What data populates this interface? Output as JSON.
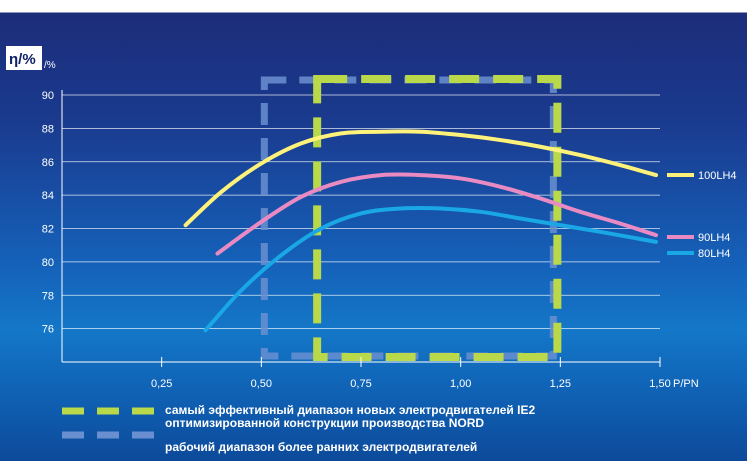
{
  "chart_data": {
    "type": "line",
    "ylabel": "η/%",
    "ylabel_unit": "/%",
    "xlabel": "P/PN",
    "xlim": [
      0,
      1.5
    ],
    "ylim": [
      74,
      90
    ],
    "x_ticks": [
      0.25,
      0.5,
      0.75,
      1.0,
      1.25,
      1.5
    ],
    "x_tick_labels": [
      "0,25",
      "0,50",
      "0,75",
      "1,00",
      "1,25",
      "1,50"
    ],
    "y_ticks": [
      76,
      78,
      80,
      82,
      84,
      86,
      88,
      90
    ],
    "grid": true,
    "legend_position": "right",
    "series": [
      {
        "name": "100LH4",
        "color": "#fff27a",
        "x": [
          0.31,
          0.4,
          0.5,
          0.6,
          0.7,
          0.8,
          0.9,
          1.0,
          1.1,
          1.2,
          1.3,
          1.4,
          1.49
        ],
        "y": [
          82.2,
          84.2,
          85.9,
          87.1,
          87.7,
          87.8,
          87.8,
          87.6,
          87.3,
          86.9,
          86.4,
          85.8,
          85.2
        ]
      },
      {
        "name": "90LH4",
        "color": "#e98bc2",
        "x": [
          0.39,
          0.5,
          0.6,
          0.7,
          0.8,
          0.9,
          1.0,
          1.1,
          1.2,
          1.3,
          1.4,
          1.49
        ],
        "y": [
          80.5,
          82.4,
          83.9,
          84.8,
          85.2,
          85.2,
          85.0,
          84.5,
          83.8,
          83.0,
          82.3,
          81.6
        ]
      },
      {
        "name": "80LH4",
        "color": "#19a7e6",
        "x": [
          0.36,
          0.45,
          0.55,
          0.65,
          0.75,
          0.85,
          0.95,
          1.05,
          1.15,
          1.25,
          1.35,
          1.49
        ],
        "y": [
          75.9,
          78.3,
          80.4,
          82.0,
          82.9,
          83.2,
          83.2,
          83.0,
          82.6,
          82.2,
          81.8,
          81.2
        ]
      }
    ],
    "ranges": [
      {
        "label": "самый эффективный диапазон новых электродвигателей IE2 оптимизированной конструкции производства NORD",
        "x_from": 0.64,
        "x_to": 1.23,
        "color": "#b9d84a"
      },
      {
        "label": "рабочий диапазон более ранних электродвигателей",
        "x_from": 0.5,
        "x_to": 1.24,
        "color": "#6a8fd0"
      }
    ]
  },
  "colors": {
    "green_range": "#b9d84a",
    "blue_range": "#6a8fd0"
  }
}
